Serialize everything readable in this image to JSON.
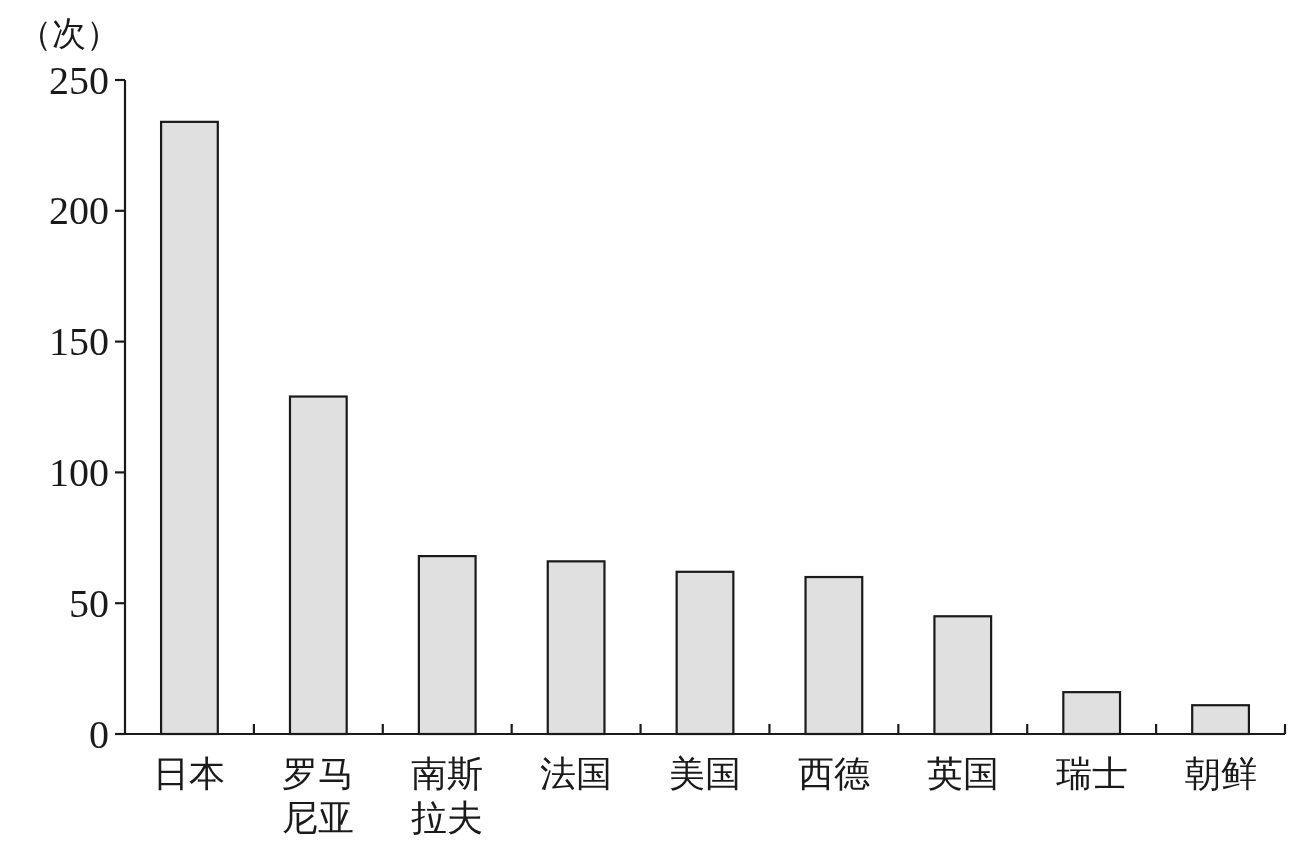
{
  "chart_data": {
    "type": "bar",
    "ylabel": "（次）",
    "categories": [
      "日本",
      "罗马尼亚",
      "南斯拉夫",
      "法国",
      "美国",
      "西德",
      "英国",
      "瑞士",
      "朝鲜"
    ],
    "values": [
      234,
      129,
      68,
      66,
      62,
      60,
      45,
      16,
      11
    ],
    "color": "#e0e0e0",
    "ylim": [
      0,
      250
    ],
    "yticks": [
      0,
      50,
      100,
      150,
      200,
      250
    ],
    "grid": false
  }
}
